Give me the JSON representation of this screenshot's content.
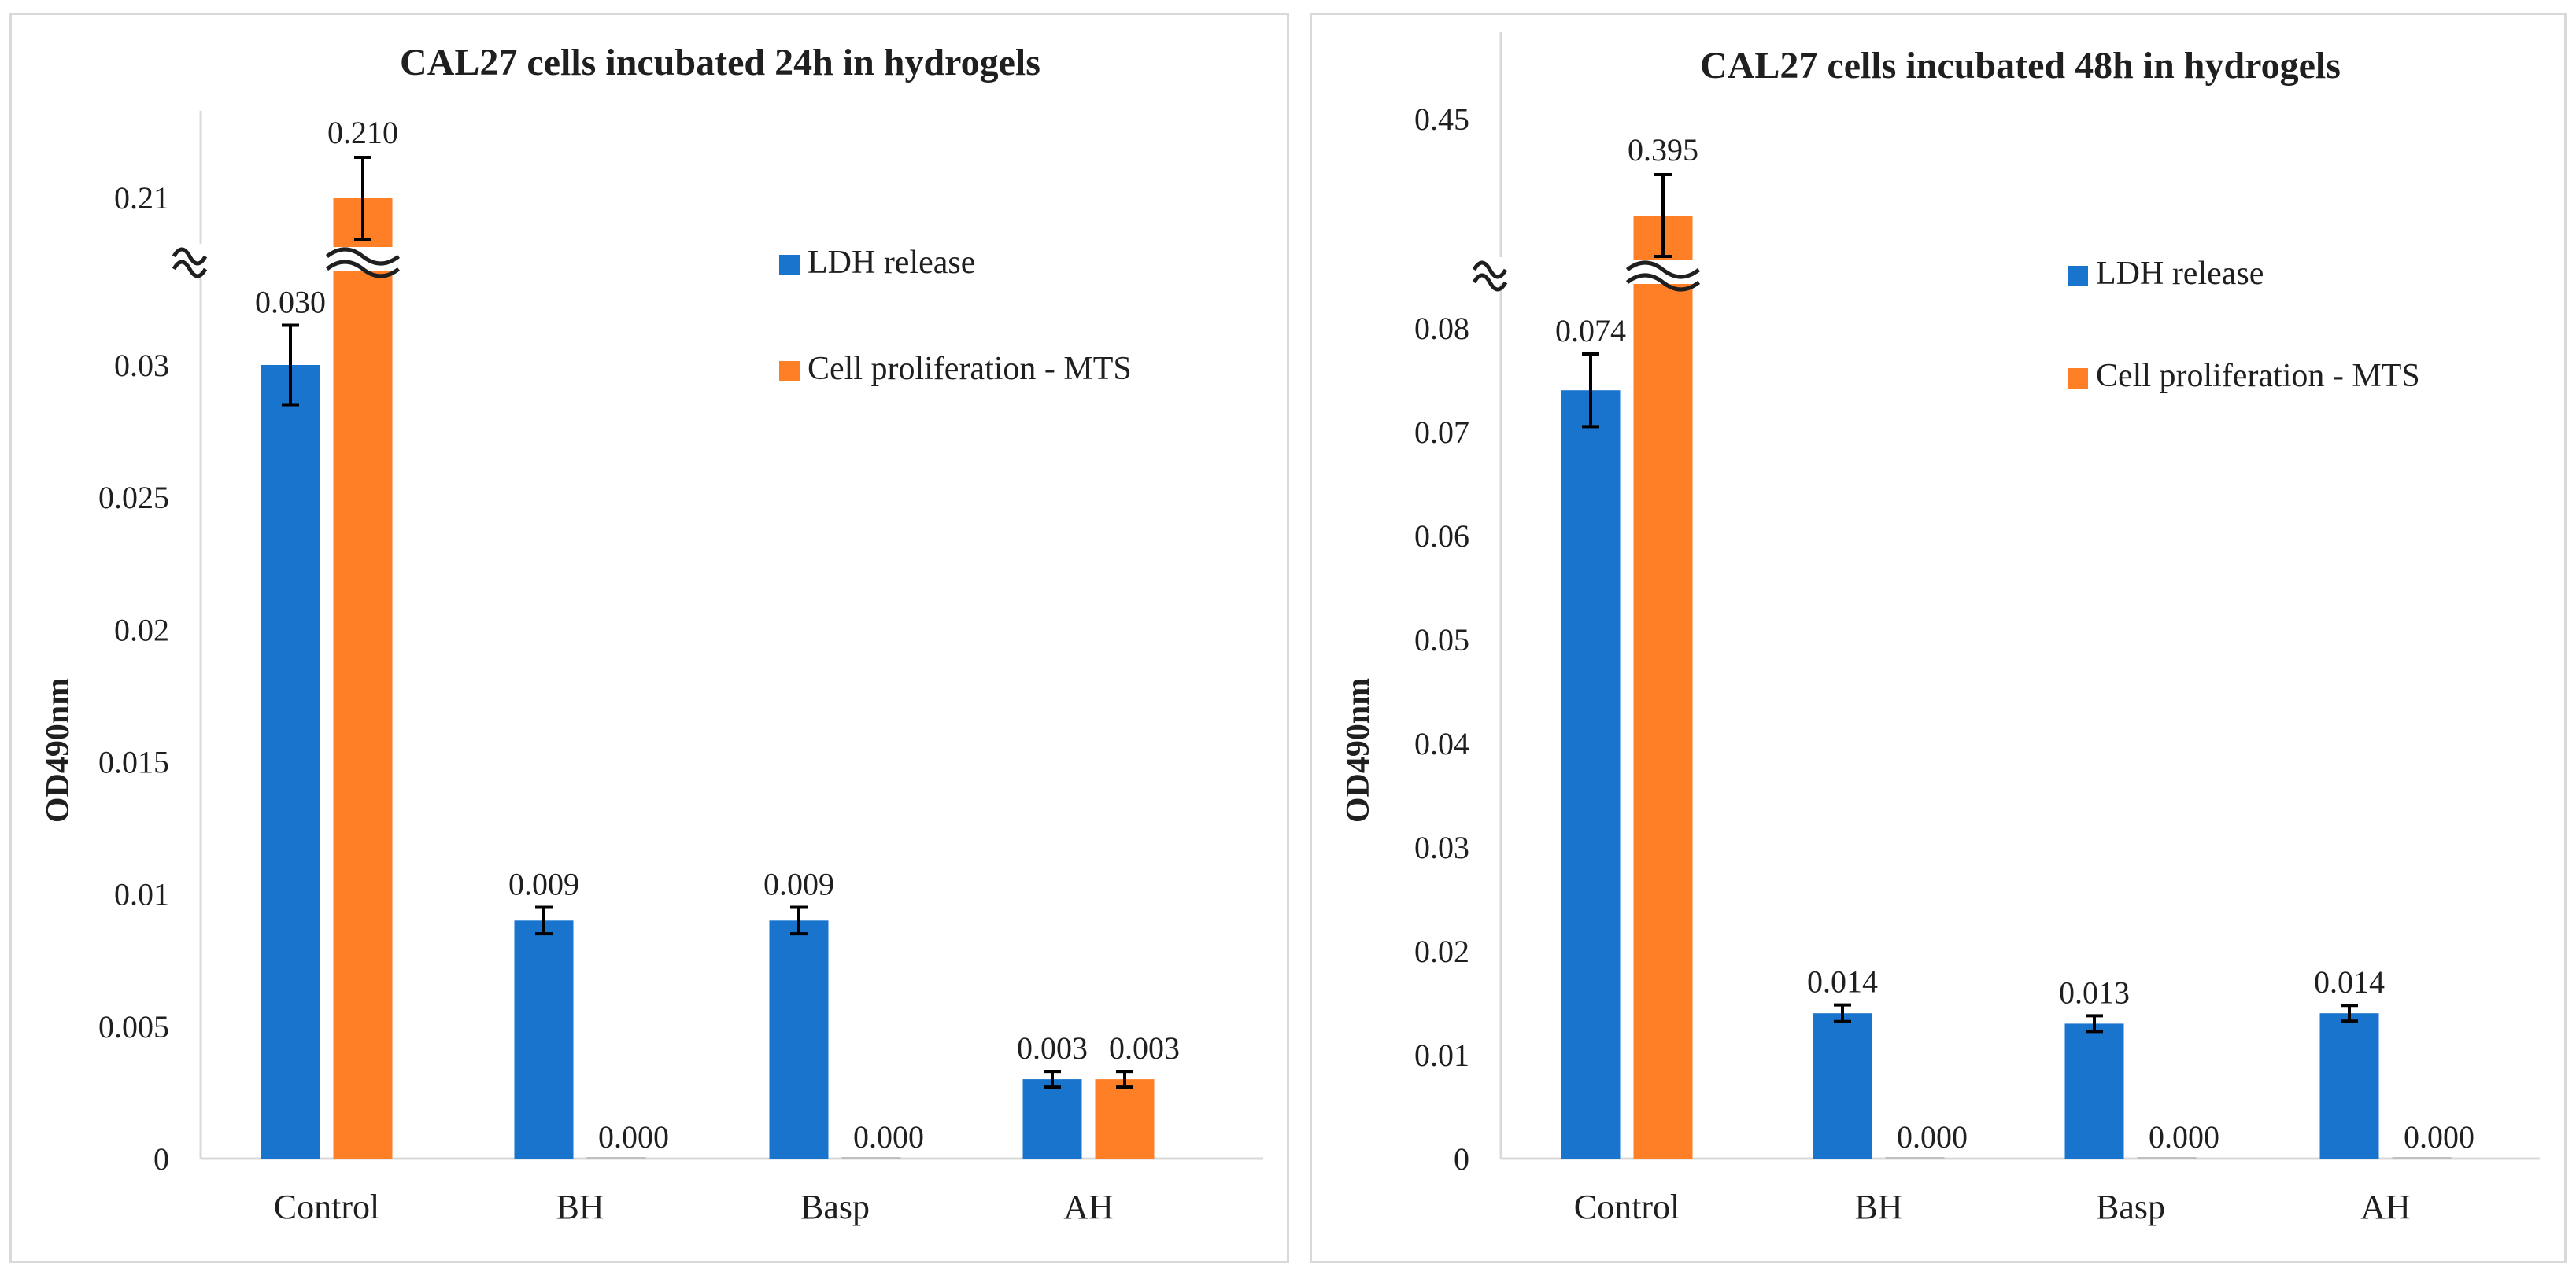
{
  "chart_data": [
    {
      "type": "bar",
      "title": "CAL27 cells incubated 24h in hydrogels",
      "ylabel": "OD490nm",
      "xlabel": "",
      "categories": [
        "Control",
        "BH",
        "Basp",
        "AH"
      ],
      "series": [
        {
          "name": "LDH release",
          "color": "#1874CD",
          "values": [
            0.03,
            0.009,
            0.009,
            0.003
          ],
          "errors": [
            0.0015,
            0.0005,
            0.0005,
            0.0002
          ],
          "labels": [
            "0.030",
            "0.009",
            "0.009",
            "0.003"
          ]
        },
        {
          "name": "Cell proliferation - MTS",
          "color": "#FF7F27",
          "values": [
            0.21,
            0.0,
            0.0,
            0.003
          ],
          "errors": [
            0.0015,
            0.0,
            0.0,
            0.0002
          ],
          "labels": [
            "0.210",
            "0.000",
            "0.000",
            "0.003"
          ]
        }
      ],
      "ylim": [
        0,
        0.03
      ],
      "y_ticks": [
        "0",
        "0.005",
        "0.01",
        "0.015",
        "0.02",
        "0.025",
        "0.03"
      ],
      "axis_break": {
        "upper_tick": "0.21",
        "upper_value": 0.21
      },
      "legend_position": "top-right",
      "grid": false
    },
    {
      "type": "bar",
      "title": "CAL27 cells incubated 48h in hydrogels",
      "ylabel": "OD490nm",
      "xlabel": "",
      "categories": [
        "Control",
        "BH",
        "Basp",
        "AH"
      ],
      "series": [
        {
          "name": "LDH release",
          "color": "#1874CD",
          "values": [
            0.074,
            0.014,
            0.013,
            0.014
          ],
          "errors": [
            0.0035,
            0.0008,
            0.0006,
            0.0007
          ],
          "labels": [
            "0.074",
            "0.014",
            "0.013",
            "0.014"
          ]
        },
        {
          "name": "Cell proliferation - MTS",
          "color": "#FF7F27",
          "values": [
            0.395,
            0.0,
            0.0,
            0.0
          ],
          "errors": [
            0.0035,
            0.0,
            0.0,
            0.0
          ],
          "labels": [
            "0.395",
            "0.000",
            "0.000",
            "0.000"
          ]
        }
      ],
      "ylim": [
        0,
        0.08
      ],
      "y_ticks": [
        "0",
        "0.01",
        "0.02",
        "0.03",
        "0.04",
        "0.05",
        "0.06",
        "0.07",
        "0.08"
      ],
      "axis_break": {
        "upper_tick": "0.45",
        "upper_value": 0.45
      },
      "legend_position": "top-right",
      "grid": false
    }
  ]
}
